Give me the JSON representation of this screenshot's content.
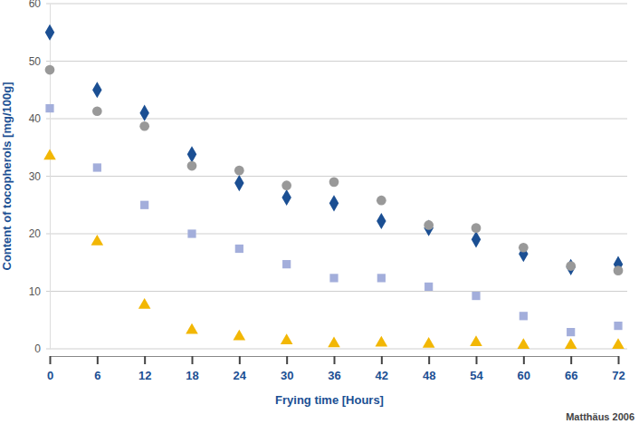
{
  "chart_data": {
    "type": "scatter",
    "x_label": "Frying time [Hours]",
    "y_label": "Content of tocopherols [mg/100g]",
    "annotation": "Matthäus 2006",
    "x": [
      0,
      6,
      12,
      18,
      24,
      30,
      36,
      42,
      48,
      54,
      60,
      66,
      72
    ],
    "xlim": [
      0,
      72
    ],
    "xticks": [
      0,
      6,
      12,
      18,
      24,
      30,
      36,
      42,
      48,
      54,
      60,
      66,
      72
    ],
    "ylim": [
      0,
      60
    ],
    "yticks": [
      0,
      10,
      20,
      30,
      40,
      50,
      60
    ],
    "grid": true,
    "series": [
      {
        "color": "#1b4f93",
        "marker": "diamond",
        "values": [
          55,
          45,
          41,
          33.8,
          28.8,
          26.3,
          25.3,
          22.2,
          21,
          19,
          16.5,
          14.2,
          14.7
        ]
      },
      {
        "color": "#999999",
        "marker": "circle",
        "values": [
          48.5,
          41.3,
          38.7,
          31.8,
          31,
          28.4,
          29,
          25.8,
          21.5,
          21,
          17.6,
          14.4,
          13.6
        ]
      },
      {
        "color": "#a3aedb",
        "marker": "square",
        "values": [
          41.8,
          31.5,
          25,
          20,
          17.4,
          14.7,
          12.3,
          12.3,
          10.8,
          9.2,
          5.7,
          2.9,
          4
        ]
      },
      {
        "color": "#f2b705",
        "marker": "triangle",
        "values": [
          33.5,
          18.6,
          7.6,
          3.2,
          2.1,
          1.4,
          0.9,
          1,
          0.8,
          1.1,
          0.6,
          0.6,
          0.6
        ]
      }
    ]
  }
}
